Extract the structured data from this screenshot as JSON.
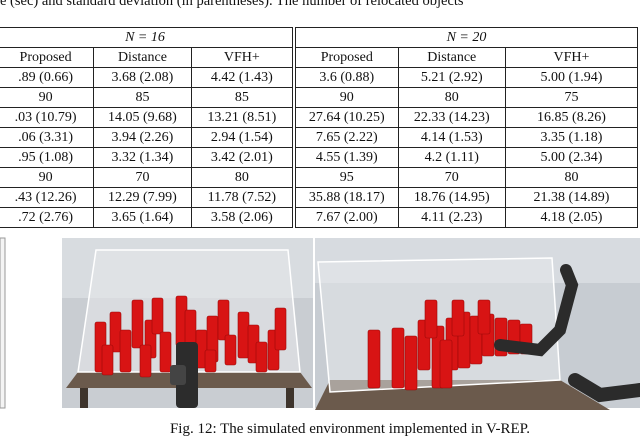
{
  "header_text": "e (sec) and standard deviation (in parentheses). The number of relocated objects",
  "table": {
    "group_headers": [
      "N = 16",
      "N = 20"
    ],
    "columns": [
      "Proposed",
      "Distance",
      "VFH+",
      "Proposed",
      "Distance",
      "VFH+"
    ],
    "rows": [
      [
        ".89 (0.66)",
        "3.68 (2.08)",
        "4.42 (1.43)",
        "3.6 (0.88)",
        "5.21 (2.92)",
        "5.00 (1.94)"
      ],
      [
        "90",
        "85",
        "85",
        "90",
        "80",
        "75"
      ],
      [
        ".03 (10.79)",
        "14.05 (9.68)",
        "13.21 (8.51)",
        "27.64 (10.25)",
        "22.33 (14.23)",
        "16.85 (8.26)"
      ],
      [
        ".06 (3.31)",
        "3.94 (2.26)",
        "2.94 (1.54)",
        "7.65 (2.22)",
        "4.14 (1.53)",
        "3.35 (1.18)"
      ],
      [
        ".95 (1.08)",
        "3.32 (1.34)",
        "3.42 (2.01)",
        "4.55 (1.39)",
        "4.2 (1.11)",
        "5.00 (2.34)"
      ],
      [
        "90",
        "70",
        "80",
        "95",
        "70",
        "80"
      ],
      [
        ".43 (12.26)",
        "12.29 (7.99)",
        "11.78 (7.52)",
        "35.88 (18.17)",
        "18.76 (14.95)",
        "21.38 (14.89)"
      ],
      [
        ".72 (2.76)",
        "3.65 (1.64)",
        "3.58 (2.06)",
        "7.67 (2.00)",
        "4.11 (2.23)",
        "4.18 (2.05)"
      ]
    ]
  },
  "figure": {
    "caption": "Fig. 12: The simulated environment implemented in V-REP."
  }
}
